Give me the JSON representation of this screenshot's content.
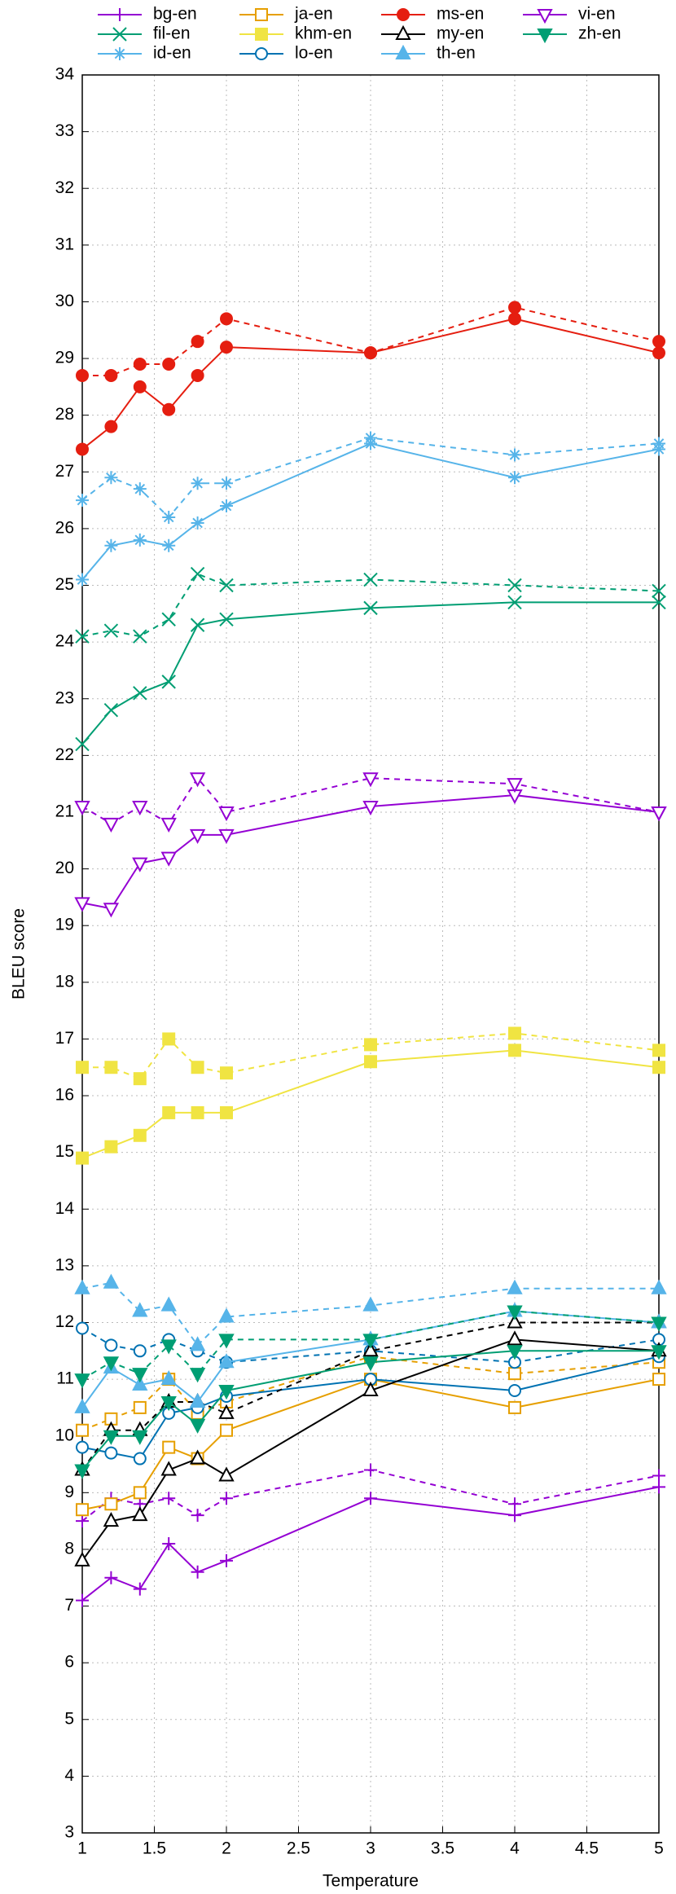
{
  "chart_data": {
    "type": "line",
    "x_label": "Temperature",
    "y_label": "BLEU score",
    "x": [
      1,
      1.2,
      1.4,
      1.6,
      1.8,
      2,
      3,
      4,
      5
    ],
    "xlim": [
      1,
      5
    ],
    "xticks": [
      1,
      1.5,
      2,
      2.5,
      3,
      3.5,
      4,
      4.5,
      5
    ],
    "ylim": [
      3,
      34
    ],
    "yticks": [
      3,
      4,
      5,
      6,
      7,
      8,
      9,
      10,
      11,
      12,
      13,
      14,
      15,
      16,
      17,
      18,
      19,
      20,
      21,
      22,
      23,
      24,
      25,
      26,
      27,
      28,
      29,
      30,
      31,
      32,
      33,
      34
    ],
    "grid": true,
    "legend_position": "top",
    "series": [
      {
        "name": "bg-en",
        "color": "#9400d3",
        "marker": "plus",
        "values": [
          7.1,
          7.5,
          7.3,
          8.1,
          7.6,
          7.8,
          8.9,
          8.6,
          9.1
        ],
        "dashed_values": [
          8.5,
          8.9,
          8.8,
          8.9,
          8.6,
          8.9,
          9.4,
          8.8,
          9.3
        ]
      },
      {
        "name": "fil-en",
        "color": "#009e73",
        "marker": "cross",
        "values": [
          22.2,
          22.8,
          23.1,
          23.3,
          24.3,
          24.4,
          24.6,
          24.7,
          24.7
        ],
        "dashed_values": [
          24.1,
          24.2,
          24.1,
          24.4,
          25.2,
          25.0,
          25.1,
          25.0,
          24.9
        ]
      },
      {
        "name": "id-en",
        "color": "#56b4e9",
        "marker": "star",
        "values": [
          25.1,
          25.7,
          25.8,
          25.7,
          26.1,
          26.4,
          27.5,
          26.9,
          27.4
        ],
        "dashed_values": [
          26.5,
          26.9,
          26.7,
          26.2,
          26.8,
          26.8,
          27.6,
          27.3,
          27.5
        ]
      },
      {
        "name": "ja-en",
        "color": "#e69f00",
        "marker": "square-open",
        "values": [
          8.7,
          8.8,
          9.0,
          9.8,
          9.6,
          10.1,
          11.0,
          10.5,
          11.0
        ],
        "dashed_values": [
          10.1,
          10.3,
          10.5,
          11.0,
          10.4,
          10.6,
          11.4,
          11.1,
          11.3
        ]
      },
      {
        "name": "khm-en",
        "color": "#f0e442",
        "marker": "square",
        "values": [
          14.9,
          15.1,
          15.3,
          15.7,
          15.7,
          15.7,
          16.6,
          16.8,
          16.5
        ],
        "dashed_values": [
          16.5,
          16.5,
          16.3,
          17.0,
          16.5,
          16.4,
          16.9,
          17.1,
          16.8
        ]
      },
      {
        "name": "lo-en",
        "color": "#0072b2",
        "marker": "circle-open",
        "values": [
          9.8,
          9.7,
          9.6,
          10.4,
          10.5,
          10.7,
          11.0,
          10.8,
          11.4
        ],
        "dashed_values": [
          11.9,
          11.6,
          11.5,
          11.7,
          11.5,
          11.3,
          11.5,
          11.3,
          11.7
        ]
      },
      {
        "name": "ms-en",
        "color": "#e51e10",
        "marker": "circle",
        "values": [
          27.4,
          27.8,
          28.5,
          28.1,
          28.7,
          29.2,
          29.1,
          29.7,
          29.1
        ],
        "dashed_values": [
          28.7,
          28.7,
          28.9,
          28.9,
          29.3,
          29.7,
          29.1,
          29.9,
          29.3
        ]
      },
      {
        "name": "my-en",
        "color": "#000000",
        "marker": "triangle-open",
        "values": [
          7.8,
          8.5,
          8.6,
          9.4,
          9.6,
          9.3,
          10.8,
          11.7,
          11.5
        ],
        "dashed_values": [
          9.4,
          10.1,
          10.1,
          10.6,
          10.6,
          10.4,
          11.5,
          12.0,
          12.0
        ]
      },
      {
        "name": "th-en",
        "color": "#56b4e9",
        "marker": "triangle",
        "values": [
          10.5,
          11.2,
          10.9,
          11.0,
          10.6,
          11.3,
          11.7,
          12.2,
          12.0
        ],
        "dashed_values": [
          12.6,
          12.7,
          12.2,
          12.3,
          11.6,
          12.1,
          12.3,
          12.6,
          12.6
        ]
      },
      {
        "name": "vi-en",
        "color": "#9400d3",
        "marker": "down-triangle-open",
        "values": [
          19.4,
          19.3,
          20.1,
          20.2,
          20.6,
          20.6,
          21.1,
          21.3,
          21.0
        ],
        "dashed_values": [
          21.1,
          20.8,
          21.1,
          20.8,
          21.6,
          21.0,
          21.6,
          21.5,
          21.0
        ]
      },
      {
        "name": "zh-en",
        "color": "#009e73",
        "marker": "down-triangle",
        "values": [
          9.4,
          10.0,
          10.0,
          10.6,
          10.2,
          10.8,
          11.3,
          11.5,
          11.5
        ],
        "dashed_values": [
          11.0,
          11.3,
          11.1,
          11.6,
          11.1,
          11.7,
          11.7,
          12.2,
          12.0
        ]
      }
    ]
  }
}
